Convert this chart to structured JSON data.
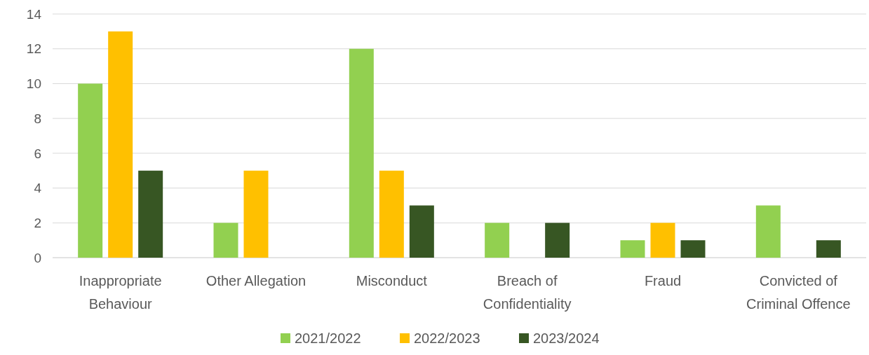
{
  "chart_data": {
    "type": "bar",
    "categories": [
      "Inappropriate Behaviour",
      "Other Allegation",
      "Misconduct",
      "Breach of Confidentiality",
      "Fraud",
      "Convicted of Criminal Offence"
    ],
    "series": [
      {
        "name": "2021/2022",
        "color": "#92d050",
        "values": [
          10,
          2,
          12,
          2,
          1,
          3
        ]
      },
      {
        "name": "2022/2023",
        "color": "#ffc000",
        "values": [
          13,
          5,
          5,
          0,
          2,
          0
        ]
      },
      {
        "name": "2023/2024",
        "color": "#375623",
        "values": [
          5,
          0,
          3,
          2,
          1,
          1
        ]
      }
    ],
    "ylim": [
      0,
      14
    ],
    "yticks": [
      0,
      2,
      4,
      6,
      8,
      10,
      12,
      14
    ],
    "grid": "y",
    "legend": "bottom"
  }
}
